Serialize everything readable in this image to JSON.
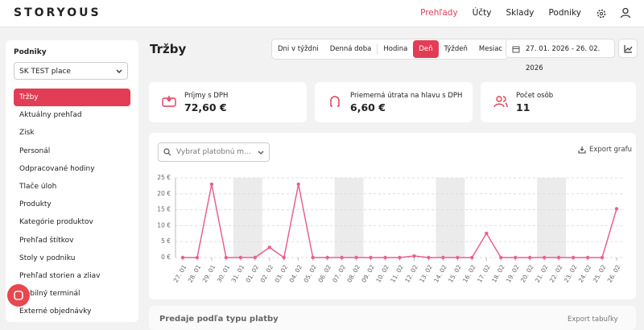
{
  "header": {
    "logo": "STORYOUS",
    "nav": [
      "Prehľady",
      "Účty",
      "Sklady",
      "Podniky"
    ]
  },
  "sidebar": {
    "label": "Podniky",
    "select": "SK TEST place",
    "items": [
      "Tržby",
      "Aktuálny prehľad",
      "Zisk",
      "Personál",
      "Odpracované hodiny",
      "Tlače úloh",
      "Produkty",
      "Kategórie produktov",
      "Prehľad štítkov",
      "Stoly v podniku",
      "Prehľad storien a zliav",
      "Mobilný terminál",
      "Externé objednávky"
    ]
  },
  "page": {
    "title": "Tržby",
    "granularity": [
      "Dni v týždni",
      "Denná doba",
      "Hodina",
      "Deň",
      "Týždeň",
      "Mesiac"
    ],
    "date_range": "27. 01. 2026 - 26. 02. 2026"
  },
  "cards": [
    {
      "label": "Príjmy s DPH",
      "value": "72,60 €"
    },
    {
      "label": "Priemerná útrata na hlavu s DPH",
      "value": "6,60 €"
    },
    {
      "label": "Počet osôb",
      "value": "11"
    }
  ],
  "chart_panel": {
    "filter_placeholder": "Vybrať platobnú m...",
    "export": "Export grafu"
  },
  "chart_data": {
    "type": "line",
    "color": "#e8618c",
    "grid": true,
    "categories": [
      "27. 01",
      "28. 01",
      "29. 01",
      "30. 01",
      "31. 01",
      "01. 02",
      "02. 02",
      "03. 02",
      "04. 02",
      "05. 02",
      "06. 02",
      "07. 02",
      "08. 02",
      "09. 02",
      "10. 02",
      "11. 02",
      "12. 02",
      "13. 02",
      "14. 02",
      "15. 02",
      "16. 02",
      "17. 02",
      "18. 02",
      "19. 02",
      "20. 02",
      "21. 02",
      "22. 02",
      "23. 02",
      "24. 02",
      "25. 02",
      "26. 02"
    ],
    "values": [
      0,
      0,
      23,
      0,
      0,
      0,
      3.2,
      0,
      23,
      0,
      0,
      0,
      0,
      0,
      0,
      0,
      0.5,
      0,
      0,
      0,
      0,
      7.6,
      0,
      0,
      0,
      0,
      0,
      0,
      0,
      0,
      15.3
    ],
    "ylim": [
      0,
      25
    ],
    "yticks": [
      {
        "value": 0,
        "label": "0 €"
      },
      {
        "value": 5,
        "label": "5 €"
      },
      {
        "value": 10,
        "label": "10 €"
      },
      {
        "value": 15,
        "label": "15 €"
      },
      {
        "value": 20,
        "label": "20 €"
      },
      {
        "value": 25,
        "label": "25 €"
      }
    ]
  },
  "bottom_panel": {
    "title": "Predaje podľa typu platby",
    "export": "Export tabuľky"
  }
}
